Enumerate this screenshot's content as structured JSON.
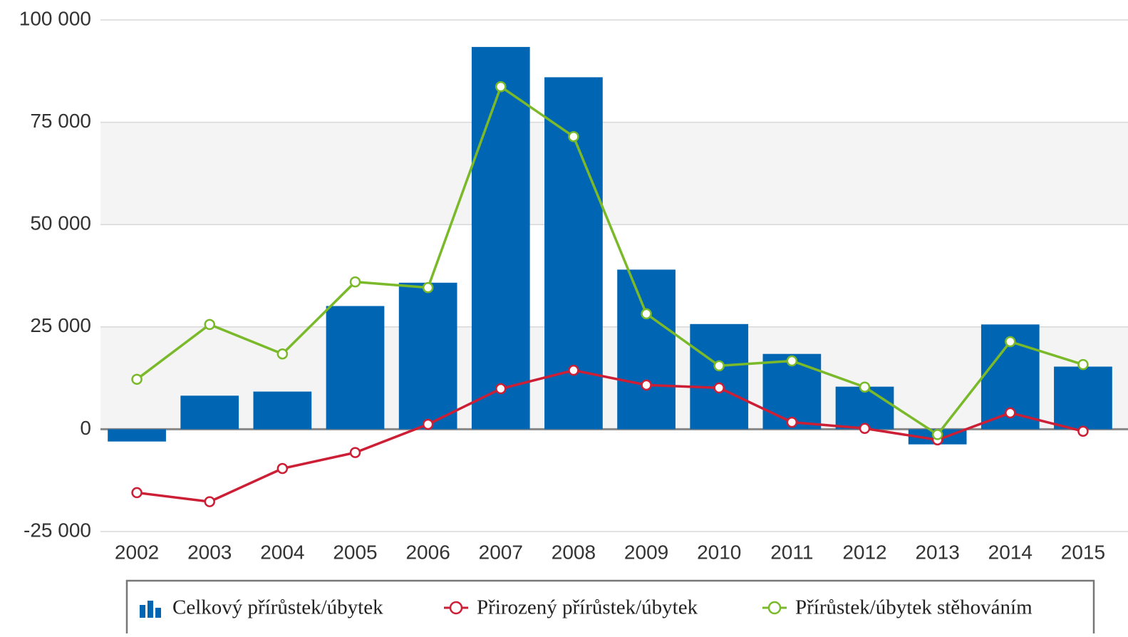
{
  "chart_data": {
    "type": "bar",
    "categories": [
      "2002",
      "2003",
      "2004",
      "2005",
      "2006",
      "2007",
      "2008",
      "2009",
      "2010",
      "2011",
      "2012",
      "2013",
      "2014",
      "2015"
    ],
    "series": [
      {
        "name": "Celkový přírůstek/úbytek",
        "type": "bar",
        "color": "#0066b3",
        "values": [
          -3000,
          8200,
          9200,
          30100,
          35800,
          93400,
          86000,
          39000,
          25700,
          18400,
          10400,
          -3700,
          25600,
          15300
        ]
      },
      {
        "name": "Přirozený přírůstek/úbytek",
        "type": "line",
        "color": "#cc1f36",
        "values": [
          -15500,
          -17700,
          -9600,
          -5700,
          1200,
          9900,
          14400,
          10800,
          10100,
          1700,
          200,
          -2600,
          4000,
          -500
        ]
      },
      {
        "name": "Přírůstek/úbytek stěhováním",
        "type": "line",
        "color": "#7ab929",
        "values": [
          12200,
          25600,
          18400,
          36000,
          34600,
          83700,
          71500,
          28200,
          15500,
          16700,
          10300,
          -1300,
          21400,
          15800
        ]
      }
    ],
    "ylim": [
      -25000,
      100000
    ],
    "yticks": [
      {
        "value": -25000,
        "label": "-25 000"
      },
      0,
      {
        "value": 25000,
        "label": "25 000"
      },
      {
        "value": 50000,
        "label": "50 000"
      },
      {
        "value": 75000,
        "label": "75 000"
      },
      {
        "value": 100000,
        "label": "100 000"
      }
    ],
    "grid": true,
    "alternate_grid_color": "#f4f4f4",
    "legend": "bottom"
  }
}
